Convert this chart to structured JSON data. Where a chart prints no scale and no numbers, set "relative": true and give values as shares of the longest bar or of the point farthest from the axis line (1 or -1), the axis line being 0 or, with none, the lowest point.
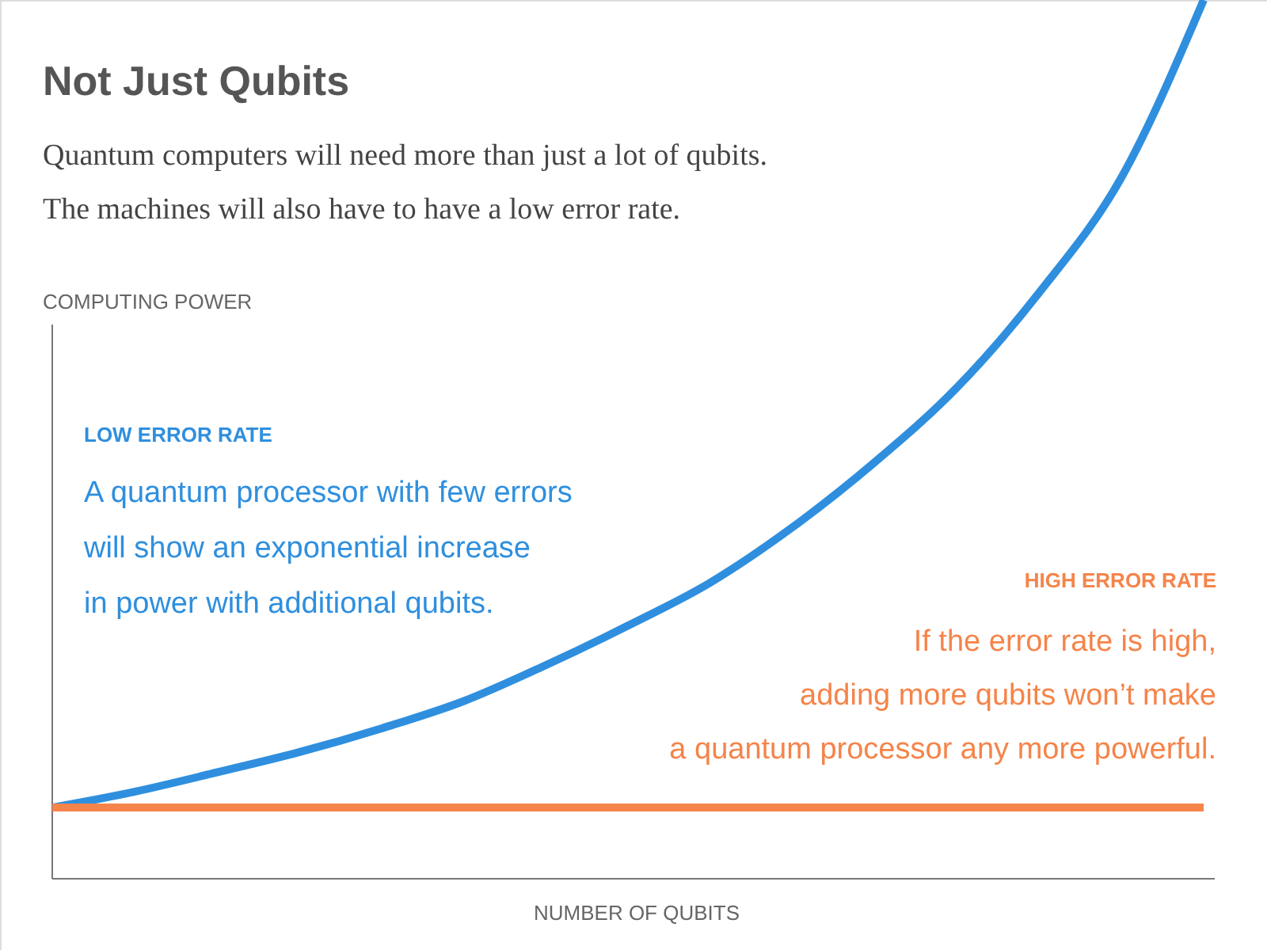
{
  "chart_data": {
    "type": "line",
    "relative": true,
    "title": "Not Just Qubits",
    "subtitle": [
      "Quantum computers will need more than just a lot of qubits.",
      "The machines will also have to have a low error rate."
    ],
    "xlabel": "NUMBER OF QUBITS",
    "ylabel": "COMPUTING POWER",
    "categories": [
      null,
      null,
      null,
      null,
      null,
      null,
      null,
      null,
      null,
      null,
      null,
      null,
      null,
      null,
      null
    ],
    "series": [
      {
        "color": "#2f8fde",
        "values": [
          0.081,
          0.099,
          0.121,
          0.144,
          0.171,
          0.202,
          0.243,
          0.288,
          0.337,
          0.4,
          0.474,
          0.559,
          0.667,
          0.798,
          1.0
        ]
      },
      {
        "color": "#f5844a",
        "values": [
          0.081,
          0.081,
          0.081,
          0.081,
          0.081,
          0.081,
          0.081,
          0.081,
          0.081,
          0.081,
          0.081,
          0.081,
          0.081,
          0.081,
          0.081
        ]
      }
    ],
    "annotations": [
      "LOW ERROR RATE",
      "A quantum processor with few errors",
      "will show an exponential increase",
      "in power with additional qubits.",
      "HIGH ERROR RATE",
      "If the error rate is high,",
      "adding more qubits won’t make",
      "a quantum processor any more powerful."
    ],
    "marker": "none",
    "line_style": "solid"
  }
}
